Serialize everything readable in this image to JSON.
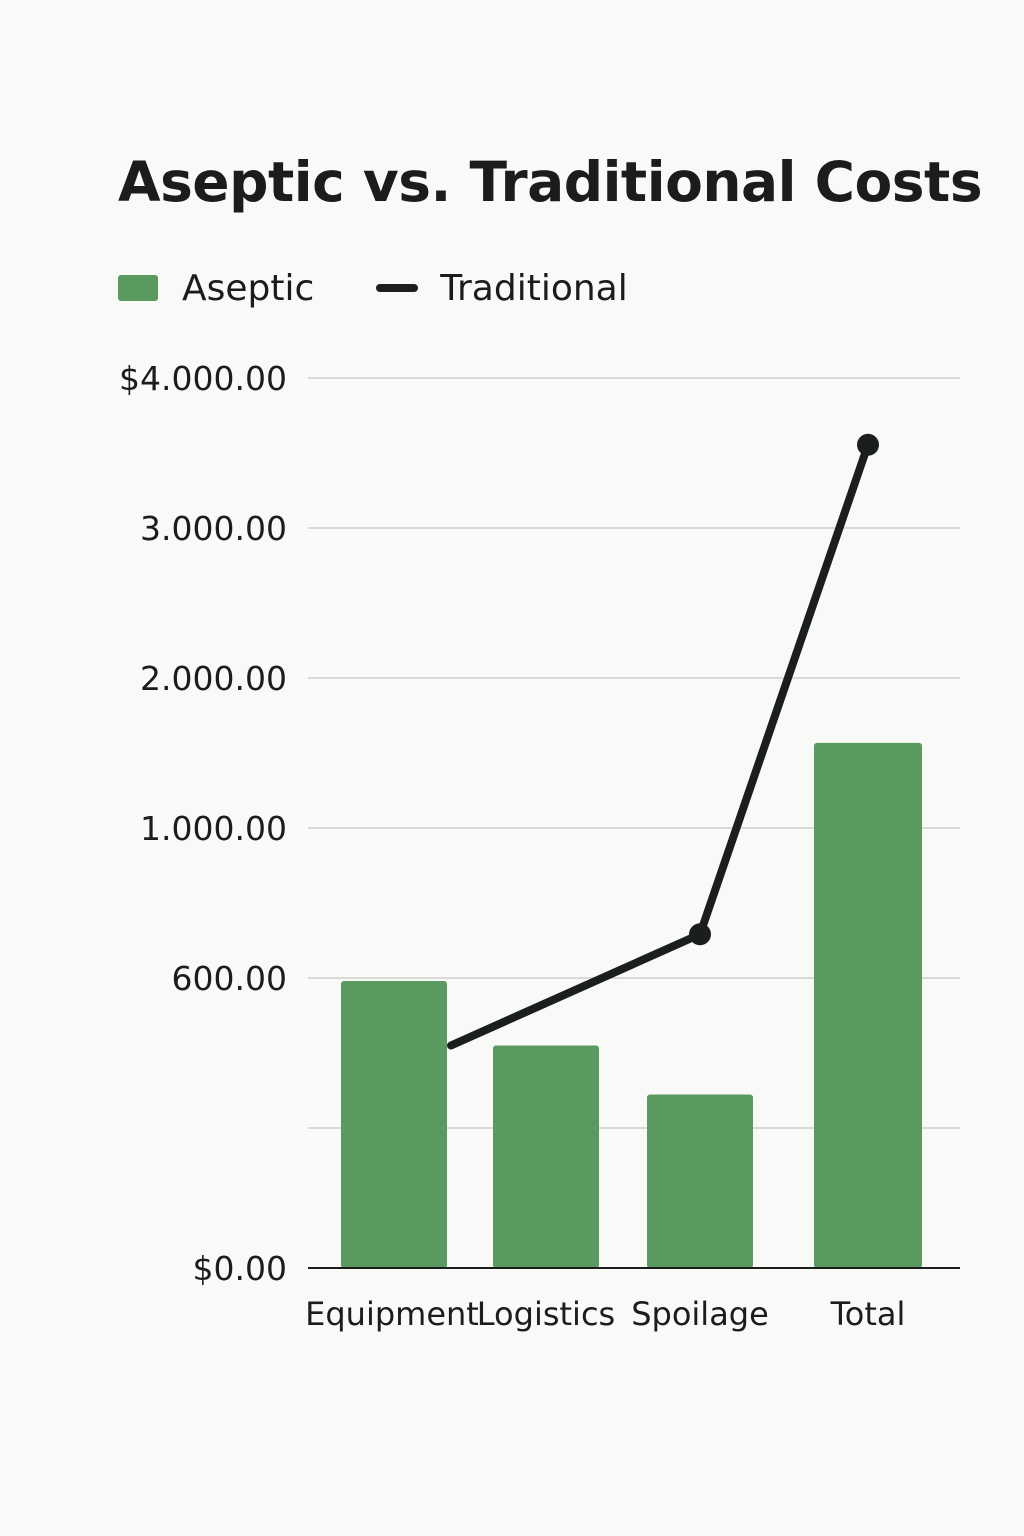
{
  "chart_data": {
    "type": "bar",
    "title": "Aseptic vs. Traditional Costs",
    "xlabel": "",
    "ylabel": "",
    "categories": [
      "Equipment",
      "Logistics",
      "Spoilage",
      "Total"
    ],
    "y_tick_labels": [
      "$0.00",
      "",
      "600.00",
      "1.000.00",
      "2.000.00",
      "3.000.00",
      "$4.000.00"
    ],
    "ylim": [
      0,
      4000
    ],
    "grid": true,
    "legend_position": "top-left",
    "series": [
      {
        "name": "Aseptic",
        "type": "bar",
        "color": "#5b9a5e",
        "values": [
          1290,
          1000,
          780,
          2360
        ]
      },
      {
        "name": "Traditional",
        "type": "line",
        "color": "#1a1e1c",
        "values": [
          1000,
          null,
          1500,
          3700
        ]
      }
    ]
  }
}
